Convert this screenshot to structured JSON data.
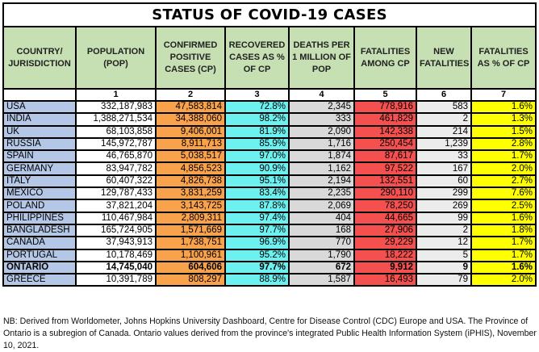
{
  "title": "STATUS OF COVID-19 CASES",
  "headers": [
    "COUNTRY/ JURISDICTION",
    "POPULATION (POP)",
    "CONFIRMED POSITIVE CASES (CP)",
    "RECOVERED CASES AS % OF CP",
    "DEATHS PER 1 MILLION OF POP",
    "FATALITIES AMONG CP",
    "NEW FATALITIES",
    "FATALITIES AS % OF CP"
  ],
  "column_numbers": [
    "",
    "1",
    "2",
    "3",
    "4",
    "5",
    "6",
    "7"
  ],
  "rows": [
    {
      "cells": [
        "USA",
        "332,187,983",
        "47,583,814",
        "72.8%",
        "2,345",
        "778,916",
        "583",
        "1.6%"
      ]
    },
    {
      "cells": [
        "INDIA",
        "1,388,271,534",
        "34,388,060",
        "98.2%",
        "333",
        "461,829",
        "2",
        "1.3%"
      ]
    },
    {
      "cells": [
        "UK",
        "68,103,858",
        "9,406,001",
        "81.9%",
        "2,090",
        "142,338",
        "214",
        "1.5%"
      ]
    },
    {
      "cells": [
        "RUSSIA",
        "145,972,787",
        "8,911,713",
        "85.9%",
        "1,716",
        "250,454",
        "1,239",
        "2.8%"
      ]
    },
    {
      "cells": [
        "SPAIN",
        "46,765,870",
        "5,038,517",
        "97.0%",
        "1,874",
        "87,617",
        "33",
        "1.7%"
      ]
    },
    {
      "cells": [
        "GERMANY",
        "83,947,782",
        "4,856,523",
        "90.9%",
        "1,162",
        "97,522",
        "167",
        "2.0%"
      ]
    },
    {
      "cells": [
        "ITALY",
        "60,407,322",
        "4,826,738",
        "95.1%",
        "2,194",
        "132,551",
        "60",
        "2.7%"
      ]
    },
    {
      "cells": [
        "MEXICO",
        "129,787,433",
        "3,831,259",
        "83.4%",
        "2,235",
        "290,110",
        "299",
        "7.6%"
      ]
    },
    {
      "cells": [
        "POLAND",
        "37,821,204",
        "3,143,725",
        "87.8%",
        "2,069",
        "78,250",
        "269",
        "2.5%"
      ]
    },
    {
      "cells": [
        "PHILIPPINES",
        "110,467,984",
        "2,809,311",
        "97.4%",
        "404",
        "44,665",
        "99",
        "1.6%"
      ]
    },
    {
      "cells": [
        "BANGLADESH",
        "165,724,905",
        "1,571,669",
        "97.7%",
        "168",
        "27,906",
        "2",
        "1.8%"
      ]
    },
    {
      "cells": [
        "CANADA",
        "37,943,913",
        "1,738,751",
        "96.9%",
        "770",
        "29,229",
        "12",
        "1.7%"
      ]
    },
    {
      "cells": [
        "PORTUGAL",
        "10,178,469",
        "1,100,961",
        "95.2%",
        "1,790",
        "18,222",
        "5",
        "1.7%"
      ]
    },
    {
      "cells": [
        "ONTARIO",
        "14,745,040",
        "604,606",
        "97.7%",
        "672",
        "9,912",
        "9",
        "1.6%"
      ],
      "bold": true
    },
    {
      "cells": [
        "GREECE",
        "10,391,789",
        "808,297",
        "88.9%",
        "1,587",
        "16,493",
        "79",
        "2.0%"
      ]
    }
  ],
  "note": "NB: Derived from Worldometer, Johns Hopkins University Dashboard, Centre for Disease Control (CDC) Europe and USA. The Province of Ontario is a subregion of Canada. Ontario values derived from the province's integrated Public Health Information System (iPHIS), November 10, 2021."
}
